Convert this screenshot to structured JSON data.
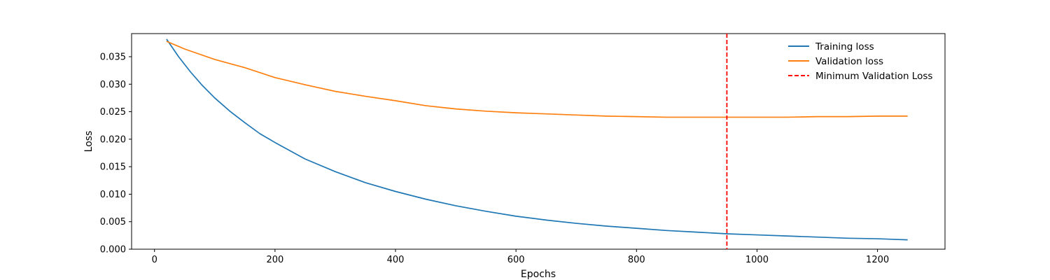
{
  "chart_data": {
    "type": "line",
    "title": "",
    "xlabel": "Epochs",
    "ylabel": "Loss",
    "xlim": [
      -38,
      1312
    ],
    "ylim": [
      0.0,
      0.0392
    ],
    "xticks": [
      0,
      200,
      400,
      600,
      800,
      1000,
      1200
    ],
    "yticks": [
      0.0,
      0.005,
      0.01,
      0.015,
      0.02,
      0.025,
      0.03,
      0.035
    ],
    "xtick_labels": [
      "0",
      "200",
      "400",
      "600",
      "800",
      "1000",
      "1200"
    ],
    "ytick_labels": [
      "0.000",
      "0.005",
      "0.010",
      "0.015",
      "0.020",
      "0.025",
      "0.030",
      "0.035"
    ],
    "grid": false,
    "legend_position": "top-right",
    "series": [
      {
        "name": "Training loss",
        "color": "#1f77b4",
        "style": "solid",
        "x": [
          20,
          40,
          60,
          80,
          100,
          125,
          150,
          175,
          200,
          250,
          300,
          350,
          400,
          450,
          500,
          550,
          600,
          650,
          700,
          750,
          800,
          850,
          900,
          950,
          1000,
          1050,
          1100,
          1150,
          1200,
          1250
        ],
        "y": [
          0.0382,
          0.035,
          0.0322,
          0.0297,
          0.0275,
          0.0251,
          0.023,
          0.021,
          0.0194,
          0.0164,
          0.0141,
          0.0121,
          0.0105,
          0.0091,
          0.0079,
          0.0069,
          0.006,
          0.0053,
          0.0047,
          0.0042,
          0.0038,
          0.0034,
          0.0031,
          0.0028,
          0.0026,
          0.0024,
          0.0022,
          0.002,
          0.0019,
          0.0017
        ]
      },
      {
        "name": "Validation loss",
        "color": "#ff7f0e",
        "style": "solid",
        "x": [
          20,
          50,
          100,
          150,
          200,
          250,
          300,
          350,
          400,
          450,
          500,
          550,
          600,
          650,
          700,
          750,
          800,
          850,
          900,
          950,
          1000,
          1050,
          1100,
          1150,
          1200,
          1250
        ],
        "y": [
          0.0378,
          0.0364,
          0.0345,
          0.033,
          0.0312,
          0.0299,
          0.0287,
          0.0278,
          0.027,
          0.0261,
          0.0255,
          0.0251,
          0.0248,
          0.0246,
          0.0244,
          0.0242,
          0.0241,
          0.024,
          0.024,
          0.024,
          0.024,
          0.024,
          0.0241,
          0.0241,
          0.0242,
          0.0242
        ]
      }
    ],
    "vlines": [
      {
        "name": "Minimum Validation Loss",
        "x": 950,
        "color": "#ff0000",
        "style": "dashed"
      }
    ]
  }
}
